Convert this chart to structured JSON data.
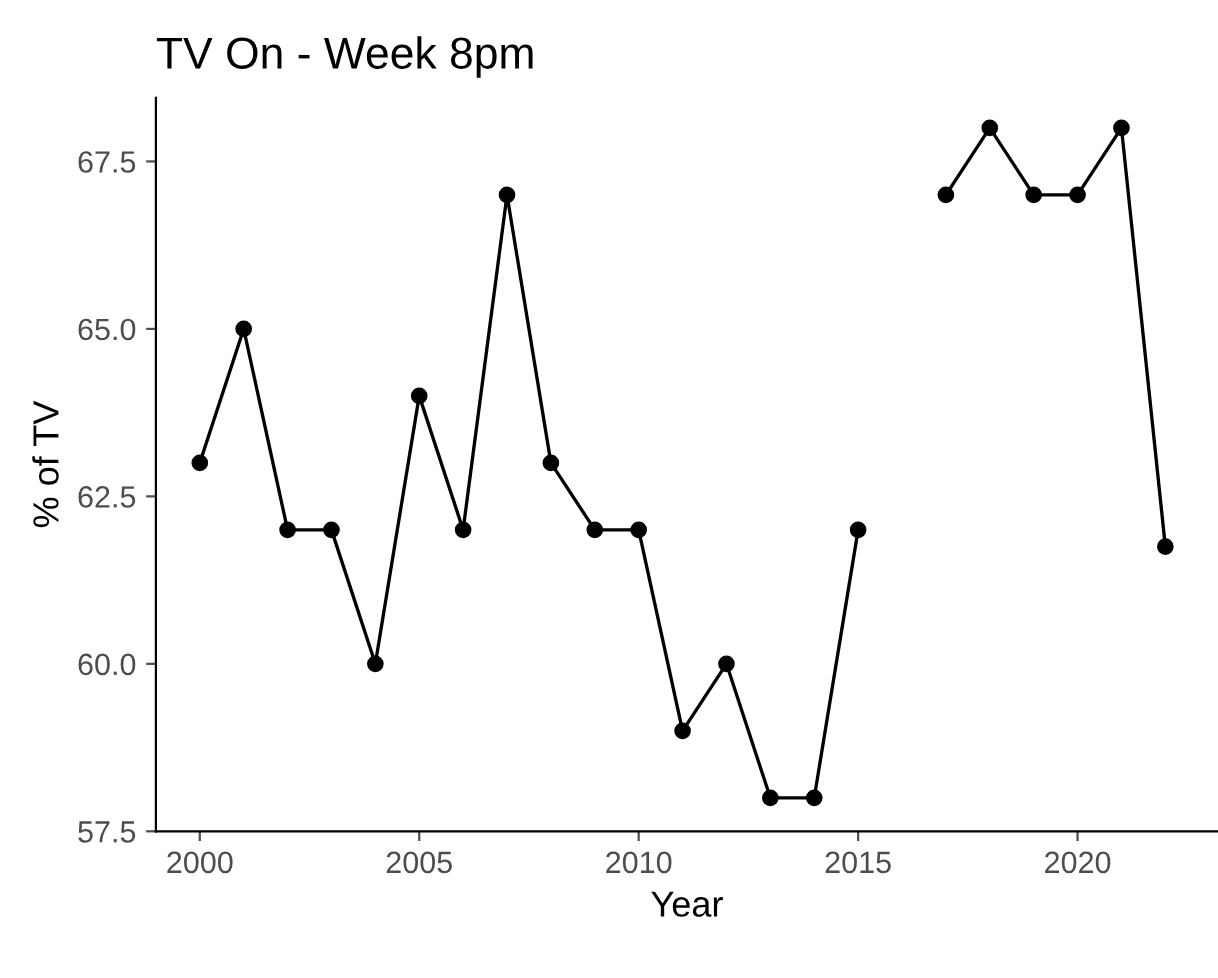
{
  "chart_data": {
    "type": "line",
    "title": "TV On - Week 8pm",
    "xlabel": "Year",
    "ylabel": "% of TV",
    "x": [
      2000,
      2001,
      2002,
      2003,
      2004,
      2005,
      2006,
      2007,
      2008,
      2009,
      2010,
      2011,
      2012,
      2013,
      2014,
      2015,
      2016,
      2017,
      2018,
      2019,
      2020,
      2021,
      2022
    ],
    "series": [
      {
        "color": "#000000",
        "values": [
          63,
          65,
          62,
          62,
          60,
          64,
          62,
          67,
          63,
          62,
          62,
          59,
          60,
          58,
          58,
          62,
          null,
          67,
          68,
          67,
          67,
          68,
          61.75
        ]
      }
    ],
    "xlim": [
      1999,
      2023.2
    ],
    "xticks": [
      2000,
      2005,
      2010,
      2015,
      2020
    ],
    "ylim": [
      57.5,
      68.45
    ],
    "yticks": [
      57.5,
      {
        "value": 60,
        "label": "60.0"
      },
      62.5,
      {
        "value": 65,
        "label": "65.0"
      },
      67.5
    ],
    "grid": false,
    "legend": false,
    "marker": "circle",
    "line_style": "solid"
  }
}
